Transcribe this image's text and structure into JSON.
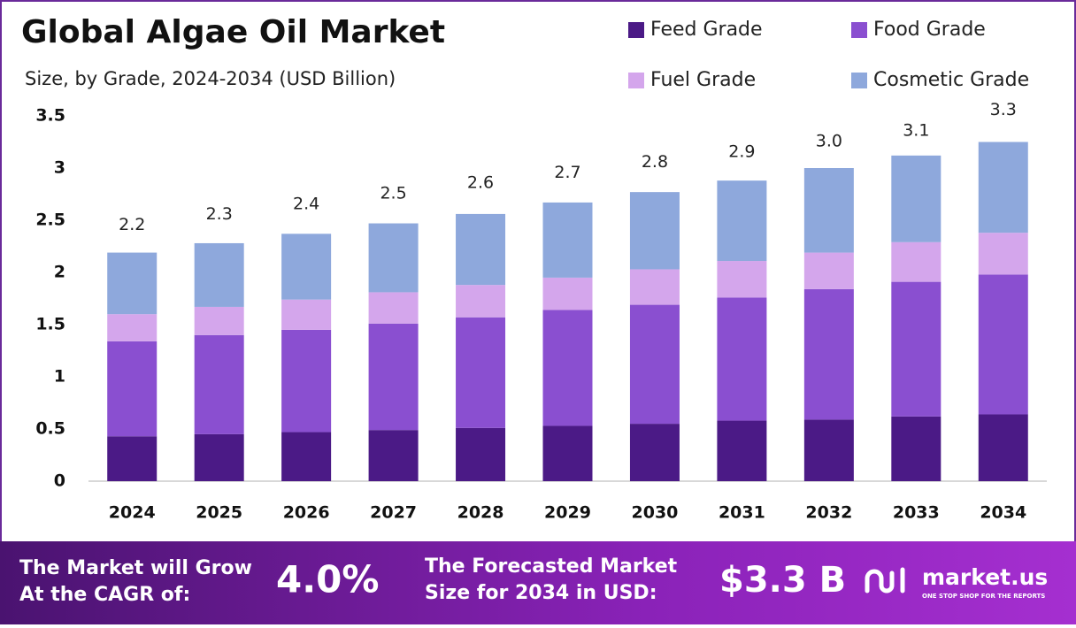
{
  "chart_data": {
    "type": "stacked_bar",
    "title": "Global Algae Oil Market",
    "subtitle": "Size, by Grade, 2024-2034 (USD Billion)",
    "categories": [
      "2024",
      "2025",
      "2026",
      "2027",
      "2028",
      "2029",
      "2030",
      "2031",
      "2032",
      "2033",
      "2034"
    ],
    "series": [
      {
        "name": "Feed Grade",
        "color": "#4b1a86",
        "values": [
          0.43,
          0.45,
          0.47,
          0.49,
          0.51,
          0.53,
          0.55,
          0.58,
          0.59,
          0.62,
          0.64
        ]
      },
      {
        "name": "Food Grade",
        "color": "#8a4fd0",
        "values": [
          0.91,
          0.95,
          0.98,
          1.02,
          1.06,
          1.11,
          1.14,
          1.18,
          1.25,
          1.29,
          1.34
        ]
      },
      {
        "name": "Fuel Grade",
        "color": "#d4a6ec",
        "values": [
          0.26,
          0.27,
          0.29,
          0.3,
          0.31,
          0.31,
          0.34,
          0.35,
          0.35,
          0.38,
          0.4
        ]
      },
      {
        "name": "Cosmetic Grade",
        "color": "#8ea8dc",
        "values": [
          0.59,
          0.61,
          0.63,
          0.66,
          0.68,
          0.72,
          0.74,
          0.77,
          0.81,
          0.83,
          0.87
        ]
      }
    ],
    "totals": {
      "values": [
        2.2,
        2.3,
        2.4,
        2.5,
        2.6,
        2.7,
        2.8,
        2.9,
        3.0,
        3.1,
        3.3
      ],
      "value_labels": [
        "2.2",
        "2.3",
        "2.4",
        "2.5",
        "2.6",
        "2.7",
        "2.8",
        "2.9",
        "3.0",
        "3.1",
        "3.3"
      ]
    },
    "ylim": [
      0,
      3.5
    ],
    "yticks": [
      0,
      0.5,
      1,
      1.5,
      2,
      2.5,
      3,
      3.5
    ],
    "grid": false
  },
  "footer": {
    "cagr_text": [
      "The Market will Grow",
      "At the CAGR of:"
    ],
    "cagr_value": "4.0%",
    "size_text": [
      "The Forecasted Market",
      "Size for 2034 in USD:"
    ],
    "size_value": "$3.3 B",
    "brand": "market.us",
    "tagline": "ONE STOP SHOP FOR THE REPORTS"
  }
}
